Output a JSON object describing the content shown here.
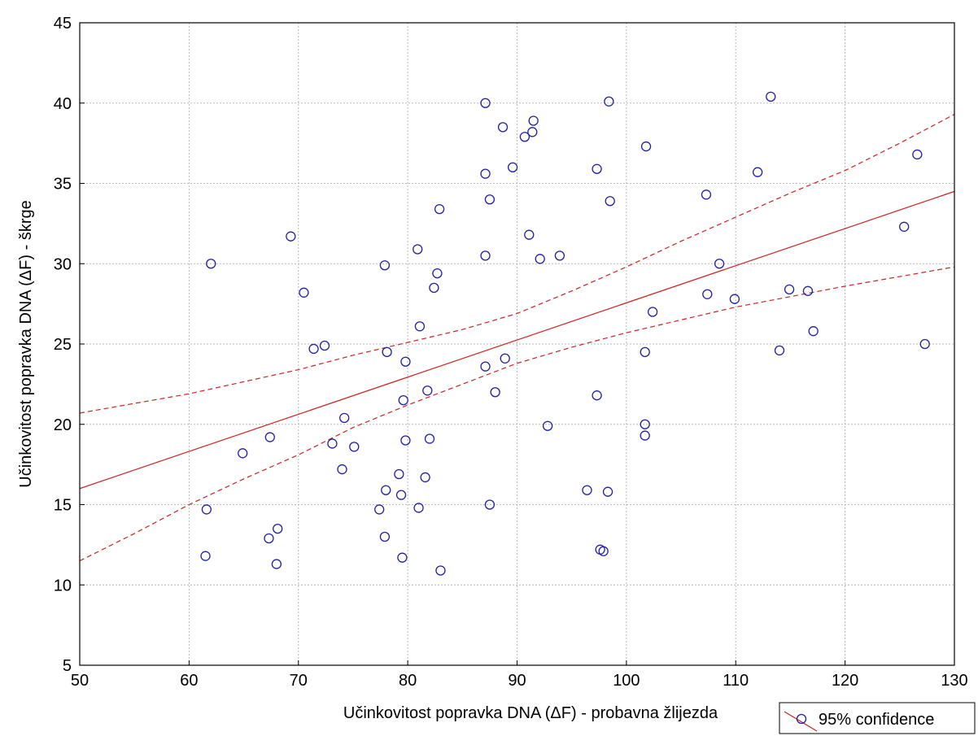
{
  "chart_data": {
    "type": "scatter",
    "title": "",
    "xlabel": "Učinkovitost popravka DNA (ΔF) - probavna žlijezda",
    "ylabel": "Učinkovitost popravka DNA (ΔF) - škrge",
    "xlim": [
      50,
      130
    ],
    "ylim": [
      5,
      45
    ],
    "x_ticks": [
      "50",
      "60",
      "70",
      "80",
      "90",
      "100",
      "110",
      "120",
      "130"
    ],
    "y_ticks": [
      "5",
      "10",
      "15",
      "20",
      "25",
      "30",
      "35",
      "40",
      "45"
    ],
    "grid": true,
    "legend": {
      "position": "bottom-right",
      "label": "95% confidence"
    },
    "colors": {
      "points": "#1f1fa8",
      "fit": "#cc2222",
      "grid": "#b8b8b8"
    },
    "fit_line": {
      "x": [
        50,
        130
      ],
      "y": [
        16.0,
        34.5
      ]
    },
    "confidence_upper": {
      "x": [
        50,
        60,
        70,
        75,
        80,
        85,
        90,
        95,
        100,
        105,
        110,
        115,
        120,
        125,
        130
      ],
      "y": [
        20.7,
        21.9,
        23.4,
        24.3,
        25.1,
        25.9,
        26.9,
        28.3,
        29.8,
        31.4,
        32.9,
        34.4,
        35.8,
        37.5,
        39.3
      ]
    },
    "confidence_lower": {
      "x": [
        50,
        55,
        60,
        65,
        70,
        75,
        80,
        85,
        90,
        95,
        100,
        110,
        120,
        130
      ],
      "y": [
        11.5,
        13.2,
        15.0,
        16.6,
        18.1,
        19.8,
        21.2,
        22.5,
        23.8,
        24.8,
        25.7,
        27.3,
        28.6,
        29.8
      ]
    },
    "points": [
      {
        "x": 61.5,
        "y": 11.8
      },
      {
        "x": 61.6,
        "y": 14.7
      },
      {
        "x": 62.0,
        "y": 30.0
      },
      {
        "x": 64.9,
        "y": 18.2
      },
      {
        "x": 67.3,
        "y": 12.9
      },
      {
        "x": 67.4,
        "y": 19.2
      },
      {
        "x": 68.0,
        "y": 11.3
      },
      {
        "x": 68.1,
        "y": 13.5
      },
      {
        "x": 69.3,
        "y": 31.7
      },
      {
        "x": 70.5,
        "y": 28.2
      },
      {
        "x": 71.4,
        "y": 24.7
      },
      {
        "x": 72.4,
        "y": 24.9
      },
      {
        "x": 73.1,
        "y": 18.8
      },
      {
        "x": 74.0,
        "y": 17.2
      },
      {
        "x": 74.2,
        "y": 20.4
      },
      {
        "x": 75.1,
        "y": 18.6
      },
      {
        "x": 77.4,
        "y": 14.7
      },
      {
        "x": 77.9,
        "y": 13.0
      },
      {
        "x": 77.9,
        "y": 29.9
      },
      {
        "x": 78.0,
        "y": 15.9
      },
      {
        "x": 78.1,
        "y": 24.5
      },
      {
        "x": 79.2,
        "y": 16.9
      },
      {
        "x": 79.4,
        "y": 15.6
      },
      {
        "x": 79.5,
        "y": 11.7
      },
      {
        "x": 79.6,
        "y": 21.5
      },
      {
        "x": 79.8,
        "y": 23.9
      },
      {
        "x": 79.8,
        "y": 19.0
      },
      {
        "x": 80.9,
        "y": 30.9
      },
      {
        "x": 81.0,
        "y": 14.8
      },
      {
        "x": 81.1,
        "y": 26.1
      },
      {
        "x": 81.6,
        "y": 16.7
      },
      {
        "x": 81.8,
        "y": 22.1
      },
      {
        "x": 82.0,
        "y": 19.1
      },
      {
        "x": 82.4,
        "y": 28.5
      },
      {
        "x": 82.7,
        "y": 29.4
      },
      {
        "x": 82.9,
        "y": 33.4
      },
      {
        "x": 83.0,
        "y": 10.9
      },
      {
        "x": 87.1,
        "y": 40.0
      },
      {
        "x": 87.1,
        "y": 35.6
      },
      {
        "x": 87.1,
        "y": 30.5
      },
      {
        "x": 87.1,
        "y": 23.6
      },
      {
        "x": 87.5,
        "y": 34.0
      },
      {
        "x": 87.5,
        "y": 15.0
      },
      {
        "x": 88.0,
        "y": 22.0
      },
      {
        "x": 88.7,
        "y": 38.5
      },
      {
        "x": 88.9,
        "y": 24.1
      },
      {
        "x": 89.6,
        "y": 36.0
      },
      {
        "x": 90.7,
        "y": 37.9
      },
      {
        "x": 91.1,
        "y": 31.8
      },
      {
        "x": 91.4,
        "y": 38.2
      },
      {
        "x": 91.5,
        "y": 38.9
      },
      {
        "x": 92.1,
        "y": 30.3
      },
      {
        "x": 92.8,
        "y": 19.9
      },
      {
        "x": 93.9,
        "y": 30.5
      },
      {
        "x": 96.4,
        "y": 15.9
      },
      {
        "x": 97.3,
        "y": 35.9
      },
      {
        "x": 97.3,
        "y": 21.8
      },
      {
        "x": 97.6,
        "y": 12.2
      },
      {
        "x": 97.9,
        "y": 12.1
      },
      {
        "x": 98.3,
        "y": 15.8
      },
      {
        "x": 98.4,
        "y": 40.1
      },
      {
        "x": 98.5,
        "y": 33.9
      },
      {
        "x": 101.7,
        "y": 24.5
      },
      {
        "x": 101.7,
        "y": 20.0
      },
      {
        "x": 101.7,
        "y": 19.3
      },
      {
        "x": 101.8,
        "y": 37.3
      },
      {
        "x": 102.4,
        "y": 27.0
      },
      {
        "x": 107.3,
        "y": 34.3
      },
      {
        "x": 107.4,
        "y": 28.1
      },
      {
        "x": 108.5,
        "y": 30.0
      },
      {
        "x": 109.9,
        "y": 27.8
      },
      {
        "x": 112.0,
        "y": 35.7
      },
      {
        "x": 113.2,
        "y": 40.4
      },
      {
        "x": 114.0,
        "y": 24.6
      },
      {
        "x": 114.9,
        "y": 28.4
      },
      {
        "x": 116.6,
        "y": 28.3
      },
      {
        "x": 117.1,
        "y": 25.8
      },
      {
        "x": 125.4,
        "y": 32.3
      },
      {
        "x": 126.6,
        "y": 36.8
      },
      {
        "x": 127.3,
        "y": 25.0
      }
    ]
  }
}
